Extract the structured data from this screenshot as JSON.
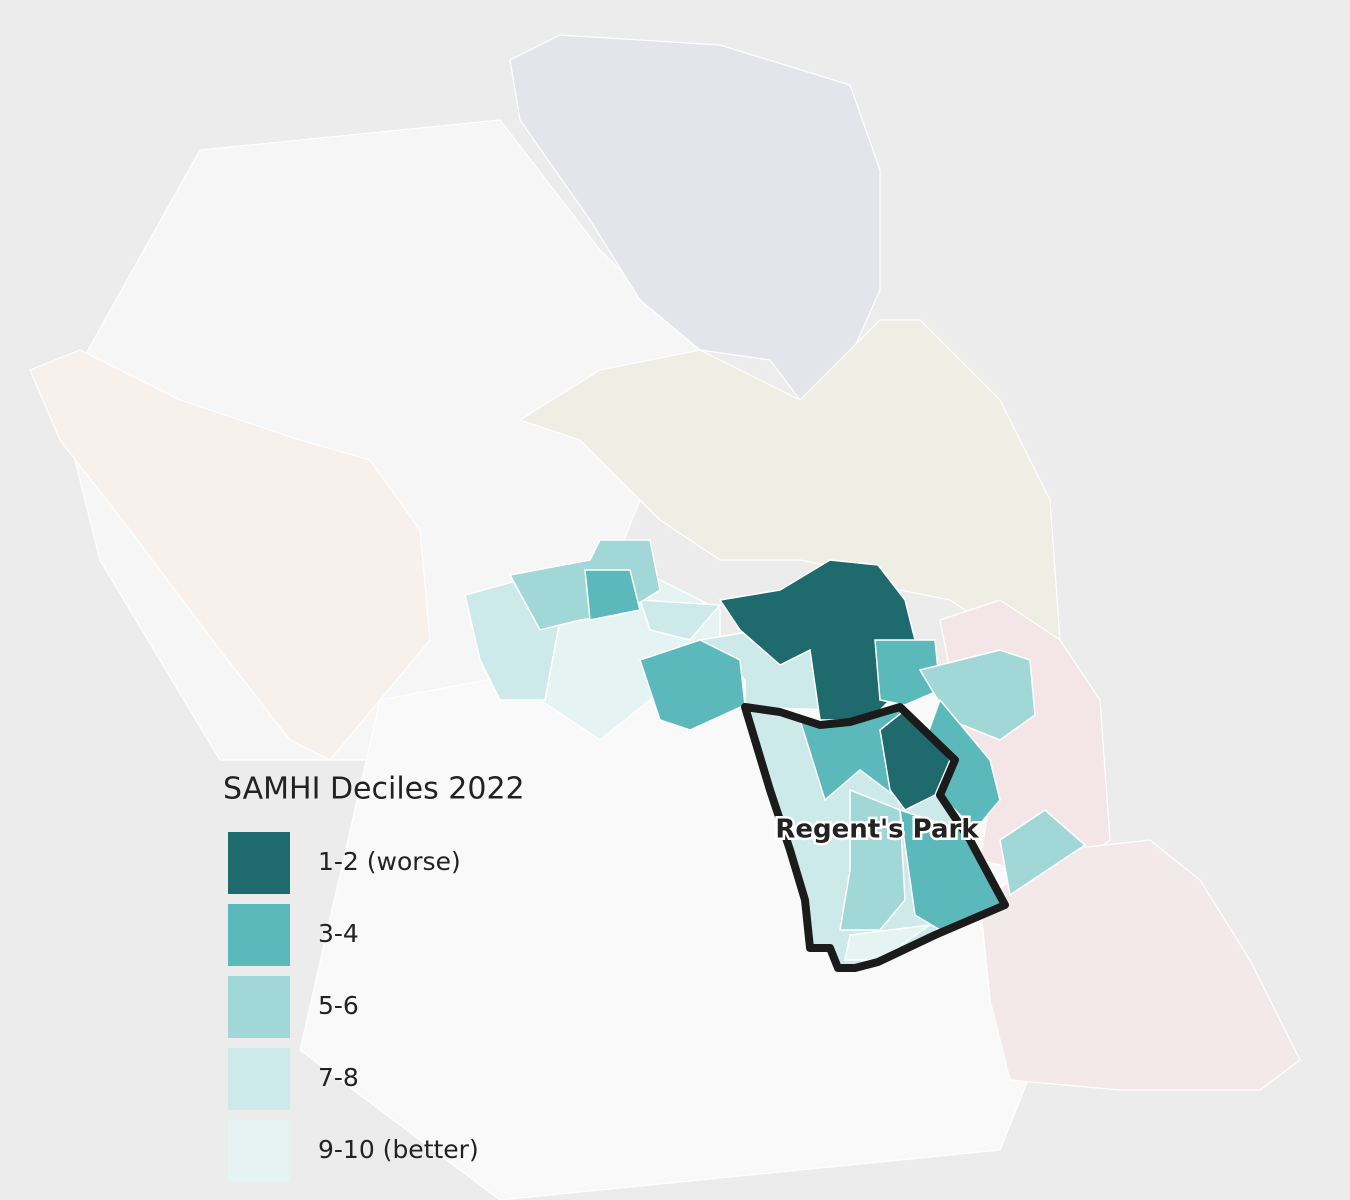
{
  "legend": {
    "title": "SAMHI Deciles 2022",
    "items": [
      {
        "label": "1-2 (worse)",
        "color": "#1f6a6c"
      },
      {
        "label": "3-4",
        "color": "#5bb9bb"
      },
      {
        "label": "5-6",
        "color": "#a1d7d7"
      },
      {
        "label": "7-8",
        "color": "#cde9e9"
      },
      {
        "label": "9-10 (better)",
        "color": "#e5f3f3"
      }
    ]
  },
  "place_label": "Regent's Park"
}
